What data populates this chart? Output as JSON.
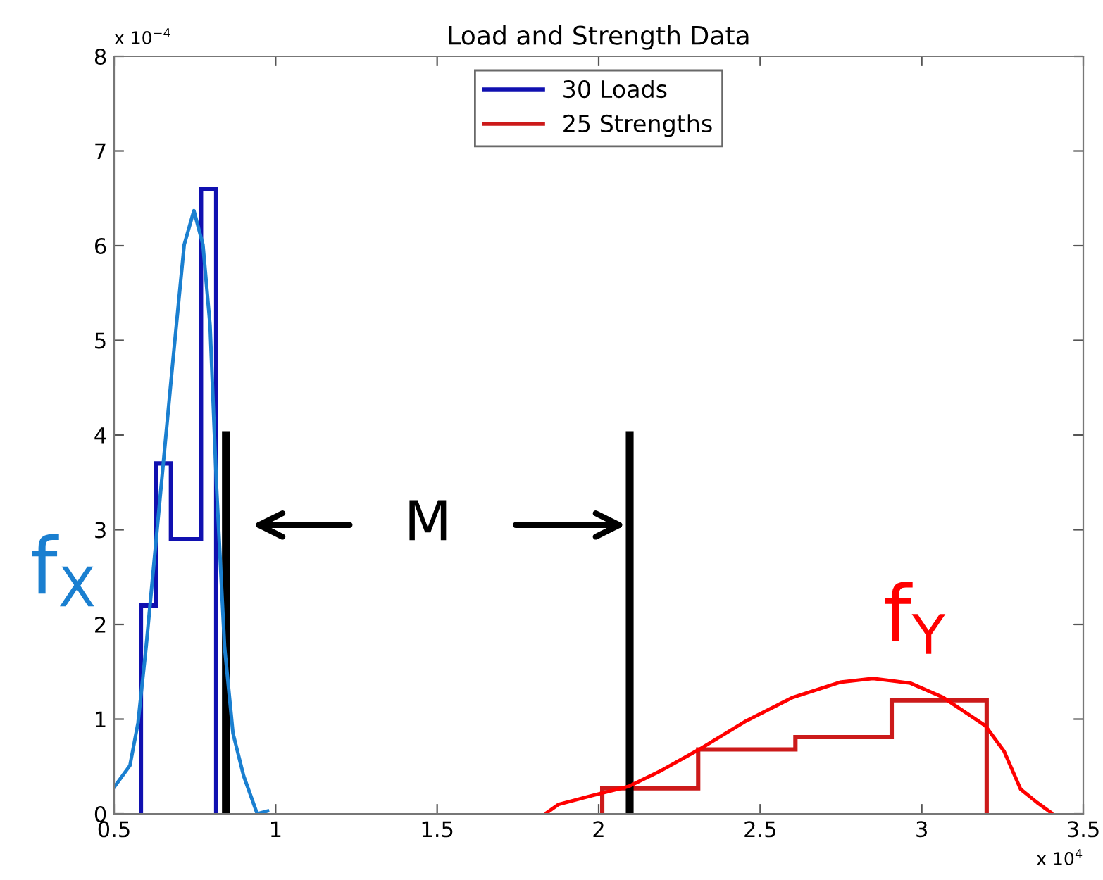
{
  "chart_data": {
    "type": "histogram",
    "title": "Load and Strength Data",
    "xlim": [
      0.5,
      3.5
    ],
    "xticks": [
      0.5,
      1,
      1.5,
      2,
      2.5,
      3,
      3.5
    ],
    "ylim": [
      0,
      8
    ],
    "yticks": [
      0,
      1,
      2,
      3,
      4,
      5,
      6,
      7,
      8
    ],
    "grid": false,
    "legend": "top",
    "marker": "none",
    "line_style": "solid",
    "series": [
      {
        "name": "30 Loads",
        "color": "#1010b0",
        "bins": [
          0.583,
          0.63,
          0.676,
          0.723,
          0.769,
          0.816
        ],
        "values": [
          2.2,
          3.7,
          2.9,
          2.9,
          6.6
        ]
      },
      {
        "name": "25 Strengths",
        "color": "#cc1a1a",
        "bins": [
          2.011,
          2.308,
          2.609,
          2.907,
          3.201
        ],
        "values": [
          0.27,
          0.68,
          0.81,
          1.2
        ]
      },
      {
        "type": "line",
        "color": "#1a7fd0",
        "x": [
          0.5,
          0.549,
          0.574,
          0.599,
          0.633,
          0.683,
          0.717,
          0.747,
          0.775,
          0.797,
          0.817,
          0.842,
          0.868,
          0.901,
          0.943,
          0.975
        ],
        "values": [
          0.28,
          0.51,
          0.96,
          1.76,
          3.0,
          4.82,
          6.01,
          6.37,
          6.01,
          5.16,
          3.46,
          1.76,
          0.85,
          0.4,
          0,
          0.03
        ]
      },
      {
        "type": "line",
        "color": "#ff0000",
        "x": [
          1.839,
          1.876,
          1.977,
          2.093,
          2.195,
          2.311,
          2.456,
          2.601,
          2.747,
          2.849,
          2.965,
          3.066,
          3.197,
          3.255,
          3.306,
          3.357,
          3.401
        ],
        "values": [
          0.01,
          0.1,
          0.19,
          0.29,
          0.46,
          0.68,
          0.98,
          1.23,
          1.39,
          1.43,
          1.38,
          1.23,
          0.93,
          0.66,
          0.26,
          0.12,
          0.01
        ]
      },
      {
        "type": "line",
        "color": "#000000",
        "x": [
          0.846,
          0.846
        ],
        "values": [
          0,
          4
        ]
      },
      {
        "type": "line",
        "color": "#000000",
        "x": [
          2.096,
          2.096
        ],
        "values": [
          0,
          4
        ]
      }
    ],
    "annotations": [
      "f$_{Y}$",
      "f$_{X}$",
      "M",
      "x 10$^{−4}$",
      "x 10$^{4}$"
    ]
  }
}
